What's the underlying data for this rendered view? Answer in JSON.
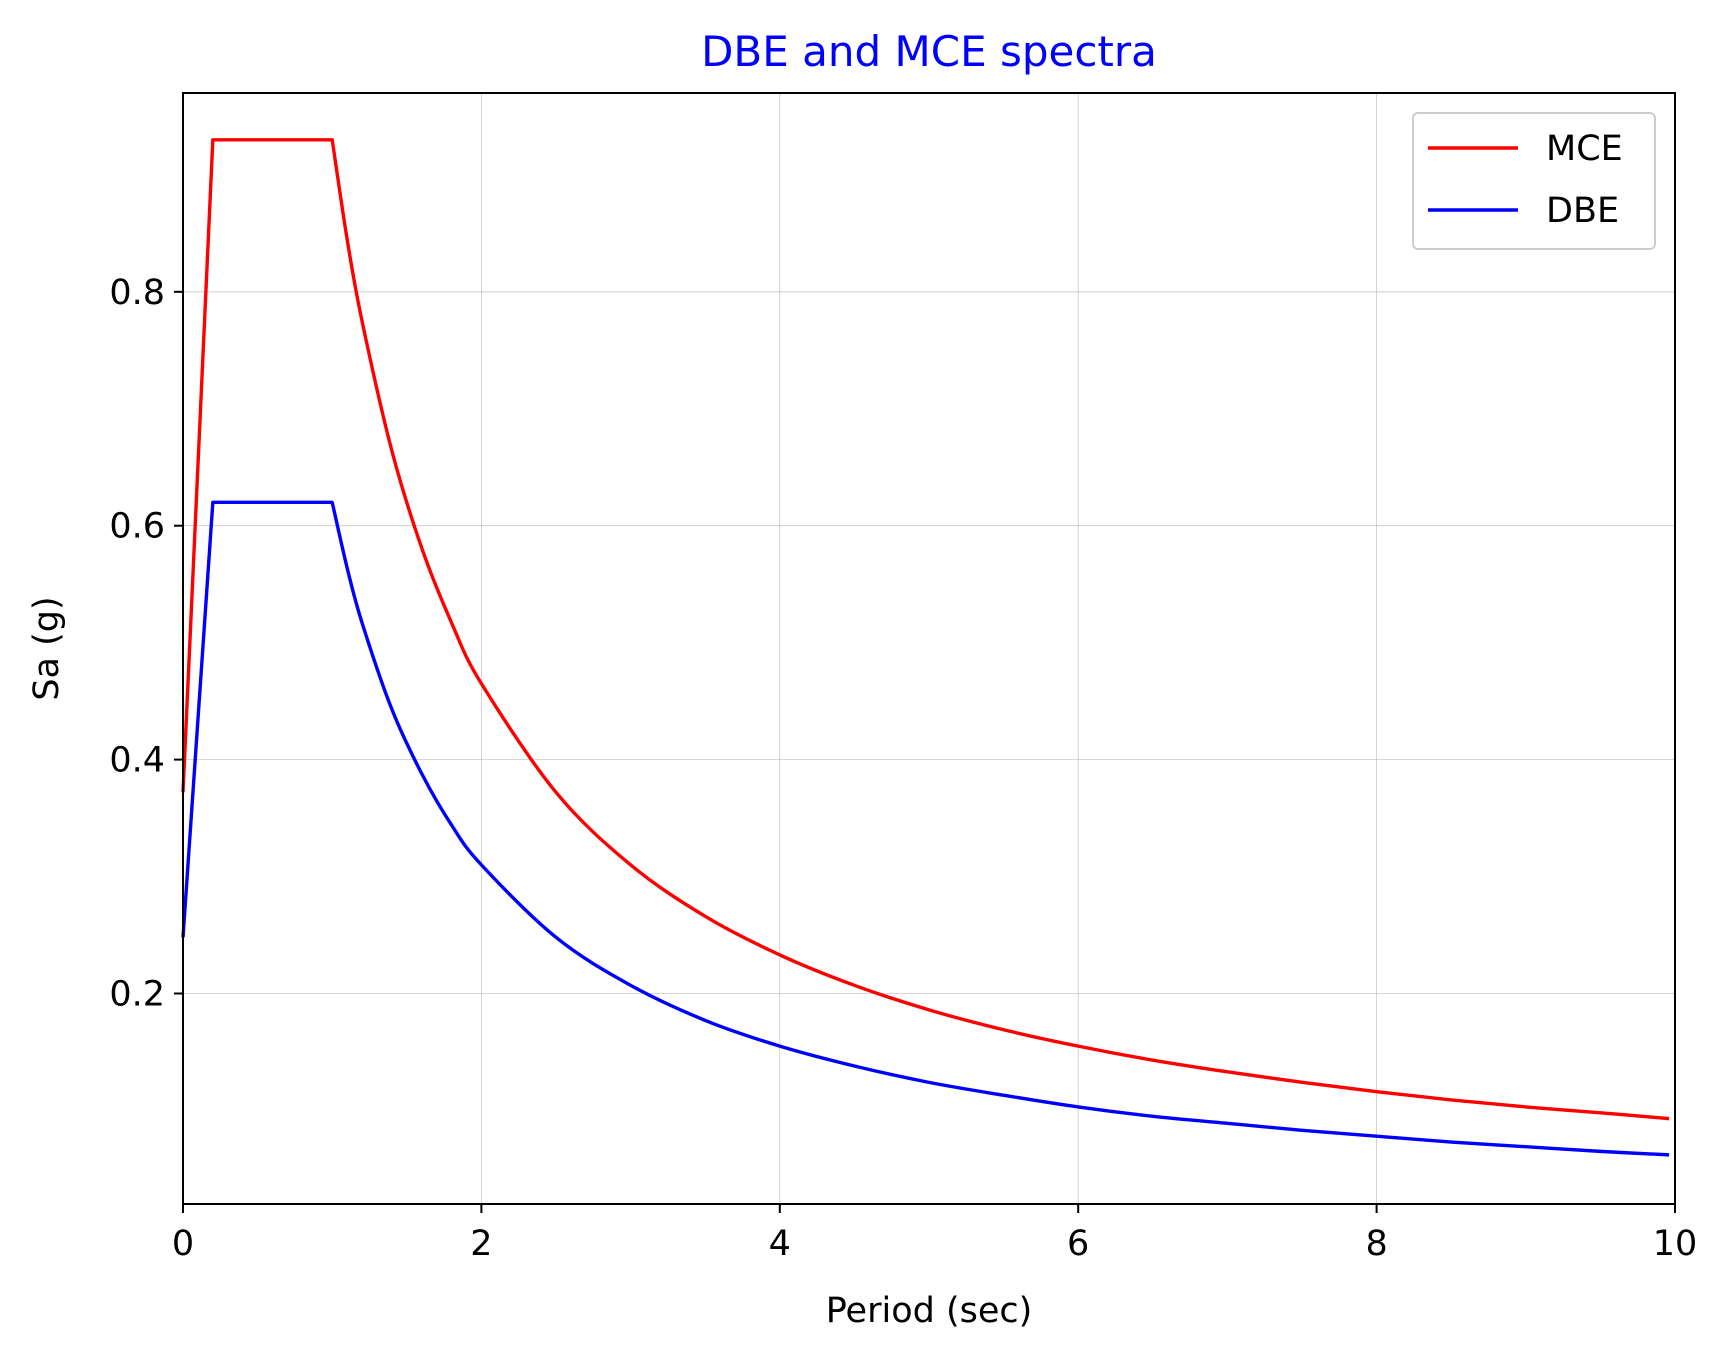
{
  "chart_data": {
    "type": "line",
    "title": "DBE and MCE spectra",
    "title_color": "#0000ff",
    "xlabel": "Period (sec)",
    "ylabel": "Sa (g)",
    "xlim": [
      0,
      10
    ],
    "ylim": [
      0.02,
      0.97
    ],
    "xticks": [
      0,
      2,
      4,
      6,
      8,
      10
    ],
    "xtick_labels": [
      "0",
      "2",
      "4",
      "6",
      "8",
      "10"
    ],
    "yticks": [
      0.2,
      0.4,
      0.6,
      0.8
    ],
    "ytick_labels": [
      "0.2",
      "0.4",
      "0.6",
      "0.8"
    ],
    "grid": true,
    "legend_position": "top-right",
    "series": [
      {
        "name": "MCE",
        "color": "#ff0000",
        "x": [
          0,
          0.2,
          1.0,
          1.1,
          1.2,
          1.4,
          1.6,
          1.8,
          2.0,
          2.5,
          3.0,
          3.5,
          4.0,
          4.5,
          5.0,
          5.5,
          6.0,
          6.5,
          7.0,
          7.5,
          8.0,
          8.5,
          9.0,
          9.5,
          9.96
        ],
        "y": [
          0.372,
          0.93,
          0.93,
          0.845,
          0.775,
          0.664,
          0.581,
          0.517,
          0.465,
          0.372,
          0.31,
          0.266,
          0.233,
          0.207,
          0.186,
          0.169,
          0.155,
          0.143,
          0.133,
          0.124,
          0.116,
          0.109,
          0.103,
          0.098,
          0.093
        ]
      },
      {
        "name": "DBE",
        "color": "#0000ff",
        "x": [
          0,
          0.2,
          1.0,
          1.1,
          1.2,
          1.4,
          1.6,
          1.8,
          2.0,
          2.5,
          3.0,
          3.5,
          4.0,
          4.5,
          5.0,
          5.5,
          6.0,
          6.5,
          7.0,
          7.5,
          8.0,
          8.5,
          9.0,
          9.5,
          9.96
        ],
        "y": [
          0.248,
          0.62,
          0.62,
          0.564,
          0.517,
          0.443,
          0.388,
          0.344,
          0.31,
          0.248,
          0.207,
          0.177,
          0.155,
          0.138,
          0.124,
          0.113,
          0.103,
          0.095,
          0.089,
          0.083,
          0.078,
          0.073,
          0.069,
          0.065,
          0.062
        ]
      }
    ]
  }
}
